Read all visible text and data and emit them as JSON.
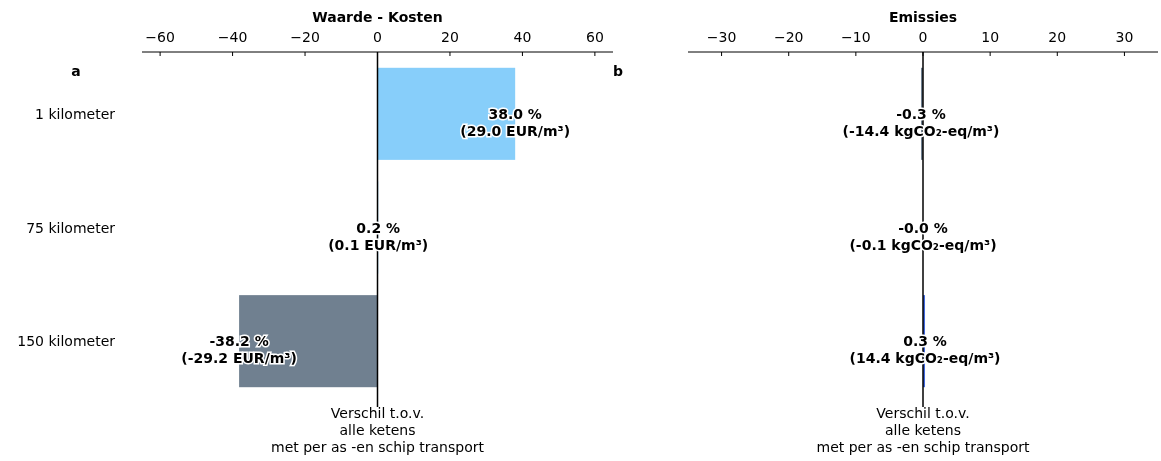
{
  "chart_data": [
    {
      "type": "bar",
      "orientation": "horizontal",
      "title": "Waarde - Kosten",
      "xlabel": "Verschil t.o.v.\nalle ketens\nmet per as -en schip transport",
      "categories": [
        "1 kilometer",
        "75 kilometer",
        "150 kilometer"
      ],
      "values": [
        38.0,
        0.2,
        -38.2
      ],
      "colors": [
        "#87cefa",
        "#87cefa",
        "#708090"
      ],
      "value_labels": [
        "38.0 %\n(29.0 EUR/m³)",
        "0.2 %\n(0.1 EUR/m³)",
        "-38.2 %\n(-29.2 EUR/m³)"
      ],
      "xlim": [
        -65,
        65
      ],
      "xticks": [
        {
          "value": -60,
          "label": "−60"
        },
        {
          "value": -40,
          "label": "−40"
        },
        {
          "value": -20,
          "label": "−20"
        },
        0,
        20,
        40,
        60
      ],
      "ref_lines": [
        {
          "axis": "x",
          "value": 0
        }
      ],
      "annotations": [
        "a"
      ]
    },
    {
      "type": "bar",
      "orientation": "horizontal",
      "title": "Emissies",
      "xlabel": "Verschil t.o.v.\nalle ketens\nmet per as -en schip transport",
      "categories": [
        null,
        null,
        null
      ],
      "values": [
        -0.3,
        -0.0,
        0.3
      ],
      "colors": [
        "#708090",
        "#708090",
        "#4169e1"
      ],
      "value_labels": [
        "-0.3 %\n(-14.4 kgCO₂-eq/m³)",
        "-0.0 %\n(-0.1 kgCO₂-eq/m³)",
        "0.3 %\n(14.4 kgCO₂-eq/m³)"
      ],
      "xlim": [
        -35,
        35
      ],
      "xticks": [
        {
          "value": -30,
          "label": "−30"
        },
        {
          "value": -20,
          "label": "−20"
        },
        {
          "value": -10,
          "label": "−10"
        },
        0,
        10,
        20,
        30
      ],
      "ref_lines": [
        {
          "axis": "x",
          "value": 0
        }
      ],
      "annotations": [
        "b"
      ],
      "tick_labels": "x"
    }
  ]
}
